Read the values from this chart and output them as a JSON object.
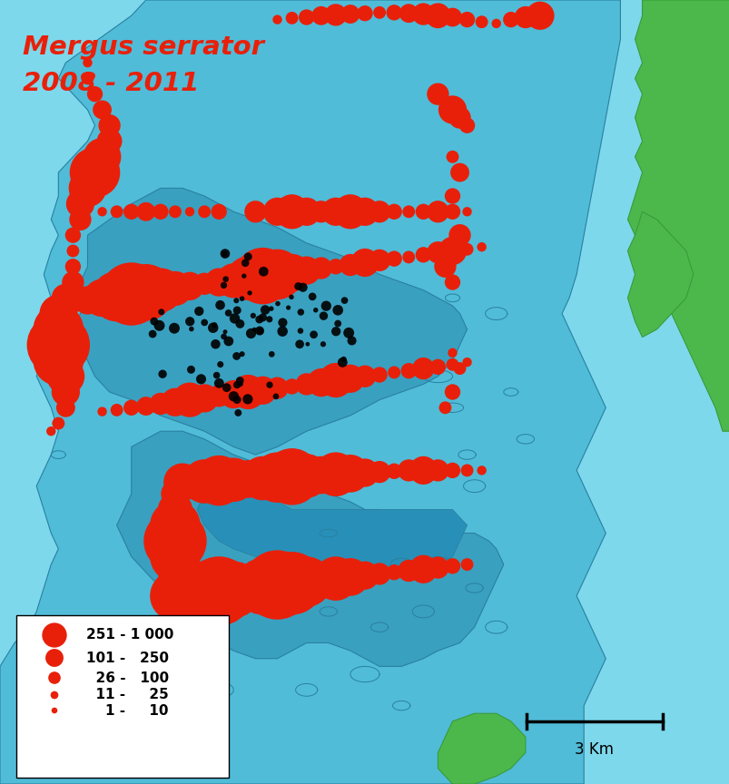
{
  "title_line1": "Mergus serrator",
  "title_line2": "2008 - 2011",
  "title_color": "#e8200a",
  "bg_color_outer": "#7dd8ec",
  "bg_color_water": "#50bcd8",
  "bg_color_deep": "#3aa0c0",
  "bg_color_lake": "#2890b8",
  "land_color": "#4cb84c",
  "land_edge": "#3a9a3a",
  "water_edge": "#2a80a0",
  "legend_labels": [
    "251 - 1 000",
    "101 -   250",
    "  26 -   100",
    "  11 -     25",
    "    1 -     10"
  ],
  "legend_sizes_pt": [
    22,
    16,
    11,
    7,
    3
  ],
  "legend_color": "#e8200a",
  "scalebar_label": "3 Km",
  "red_dot_color": "#e8200a",
  "black_dot_color": "#000000"
}
